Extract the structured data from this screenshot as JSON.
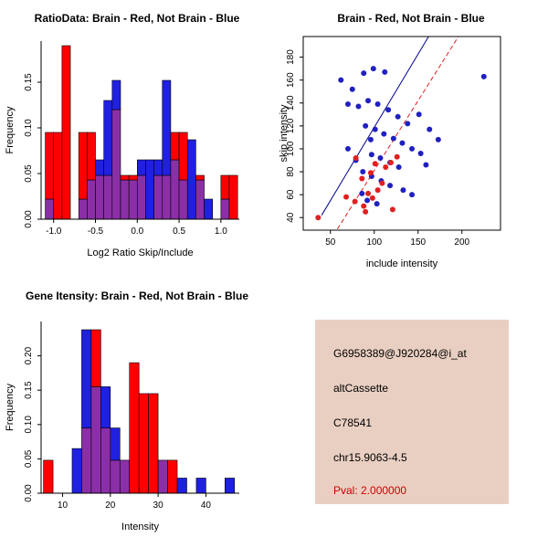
{
  "info_box": {
    "bg_color": "#e9cfc2",
    "lines": [
      {
        "text": "G6958389@J920284@i_at",
        "color": "#000000"
      },
      {
        "text": "altCassette",
        "color": "#000000"
      },
      {
        "text": "C78541",
        "color": "#000000"
      },
      {
        "text": "chr15.9063-4.5",
        "color": "#000000"
      },
      {
        "text": "Pval: 2.000000",
        "color": "#cc0000"
      }
    ]
  },
  "chart_data": [
    {
      "id": "ratio-hist",
      "type": "bar",
      "title": "RatioData: Brain - Red, Not Brain - Blue",
      "xlabel": "Log2 Ratio Skip/Include",
      "ylabel": "Frequency",
      "xlim": [
        -1.15,
        1.22
      ],
      "ylim": [
        0,
        0.195
      ],
      "xticks": [
        -1.0,
        -0.5,
        0.0,
        0.5,
        1.0
      ],
      "xtick_labels": [
        "-1.0",
        "-0.5",
        "0.0",
        "0.5",
        "1.0"
      ],
      "yticks": [
        0,
        0.05,
        0.1,
        0.15
      ],
      "ytick_labels": [
        "0.00",
        "0.05",
        "0.10",
        "0.15"
      ],
      "bin_start": -1.1,
      "bin_width": 0.1,
      "overlap_color": "#8b2fa8",
      "series": [
        {
          "name": "Brain",
          "color": "#ff0000",
          "values": [
            0.095,
            0.095,
            0.19,
            0,
            0.095,
            0.095,
            0.048,
            0.048,
            0.12,
            0.048,
            0.048,
            0.048,
            0,
            0.048,
            0.048,
            0.095,
            0.095,
            0,
            0.048,
            0,
            0,
            0.048,
            0.048,
            0
          ]
        },
        {
          "name": "Not Brain",
          "color": "#2020e0",
          "values": [
            0.022,
            0,
            0,
            0,
            0.022,
            0.043,
            0.065,
            0.13,
            0.152,
            0.043,
            0.043,
            0.065,
            0.065,
            0.065,
            0.152,
            0.065,
            0.043,
            0.087,
            0.043,
            0.022,
            0,
            0.022,
            0,
            0
          ]
        }
      ]
    },
    {
      "id": "scatter",
      "type": "scatter",
      "title": "Brain - Red, Not Brain - Blue",
      "xlabel": "include intensity",
      "ylabel": "skip intensity",
      "xlim": [
        19,
        244
      ],
      "ylim": [
        29,
        198
      ],
      "xticks": [
        50,
        100,
        150,
        200
      ],
      "xtick_labels": [
        "50",
        "100",
        "150",
        "200"
      ],
      "yticks": [
        40,
        60,
        80,
        100,
        120,
        140,
        160,
        180
      ],
      "ytick_labels": [
        "40",
        "60",
        "80",
        "100",
        "120",
        "140",
        "160",
        "180"
      ],
      "series": [
        {
          "name": "Not Brain",
          "color": "#2020c0",
          "points": [
            [
              62,
              160
            ],
            [
              75,
              152
            ],
            [
              88,
              166
            ],
            [
              99,
              170
            ],
            [
              112,
              167
            ],
            [
              70,
              139
            ],
            [
              82,
              137
            ],
            [
              93,
              142
            ],
            [
              104,
              139
            ],
            [
              116,
              134
            ],
            [
              127,
              128
            ],
            [
              138,
              122
            ],
            [
              90,
              120
            ],
            [
              101,
              117
            ],
            [
              111,
              113
            ],
            [
              122,
              109
            ],
            [
              132,
              105
            ],
            [
              143,
              100
            ],
            [
              153,
              96
            ],
            [
              163,
              117
            ],
            [
              173,
              108
            ],
            [
              97,
              95
            ],
            [
              107,
              92
            ],
            [
              118,
              88
            ],
            [
              128,
              84
            ],
            [
              87,
              80
            ],
            [
              97,
              76
            ],
            [
              108,
              72
            ],
            [
              118,
              68
            ],
            [
              133,
              64
            ],
            [
              143,
              60
            ],
            [
              92,
              55
            ],
            [
              103,
              52
            ],
            [
              225,
              163
            ],
            [
              151,
              130
            ],
            [
              159,
              86
            ],
            [
              70,
              100
            ],
            [
              79,
              90
            ],
            [
              86,
              61
            ],
            [
              96,
              108
            ]
          ]
        },
        {
          "name": "Brain",
          "color": "#e02020",
          "points": [
            [
              36,
              40
            ],
            [
              68,
              58
            ],
            [
              78,
              54
            ],
            [
              88,
              50
            ],
            [
              93,
              61
            ],
            [
              98,
              57
            ],
            [
              104,
              64
            ],
            [
              109,
              70
            ],
            [
              86,
              74
            ],
            [
              96,
              79
            ],
            [
              113,
              84
            ],
            [
              119,
              88
            ],
            [
              101,
              87
            ],
            [
              79,
              92
            ],
            [
              126,
              93
            ],
            [
              90,
              45
            ],
            [
              121,
              47
            ]
          ]
        }
      ],
      "lines": [
        {
          "color": "#00008b",
          "dash": false,
          "from": [
            40,
            42
          ],
          "to": [
            162,
            198
          ]
        },
        {
          "color": "#dd2222",
          "dash": true,
          "from": [
            58,
            30
          ],
          "to": [
            196,
            198
          ]
        }
      ]
    },
    {
      "id": "gene-hist",
      "type": "bar",
      "title": "Gene Itensity: Brain - Red, Not Brain - Blue",
      "xlabel": "Intensity",
      "ylabel": "Frequency",
      "xlim": [
        5.5,
        47
      ],
      "ylim": [
        0,
        0.25
      ],
      "xticks": [
        10,
        20,
        30,
        40
      ],
      "xtick_labels": [
        "10",
        "20",
        "30",
        "40"
      ],
      "yticks": [
        0,
        0.05,
        0.1,
        0.15,
        0.2
      ],
      "ytick_labels": [
        "0.00",
        "0.05",
        "0.10",
        "0.15",
        "0.20"
      ],
      "bin_start": 6,
      "bin_width": 2,
      "overlap_color": "#8b2fa8",
      "series": [
        {
          "name": "Brain",
          "color": "#ff0000",
          "values": [
            0.048,
            0,
            0,
            0,
            0.095,
            0.238,
            0.095,
            0.048,
            0.048,
            0.19,
            0.145,
            0.145,
            0.048,
            0.048,
            0,
            0,
            0,
            0,
            0,
            0
          ]
        },
        {
          "name": "Not Brain",
          "color": "#2020e0",
          "values": [
            0,
            0,
            0,
            0.065,
            0.238,
            0.155,
            0.155,
            0.095,
            0.048,
            0,
            0,
            0,
            0.048,
            0,
            0.022,
            0,
            0.022,
            0,
            0,
            0.022
          ]
        }
      ]
    }
  ]
}
